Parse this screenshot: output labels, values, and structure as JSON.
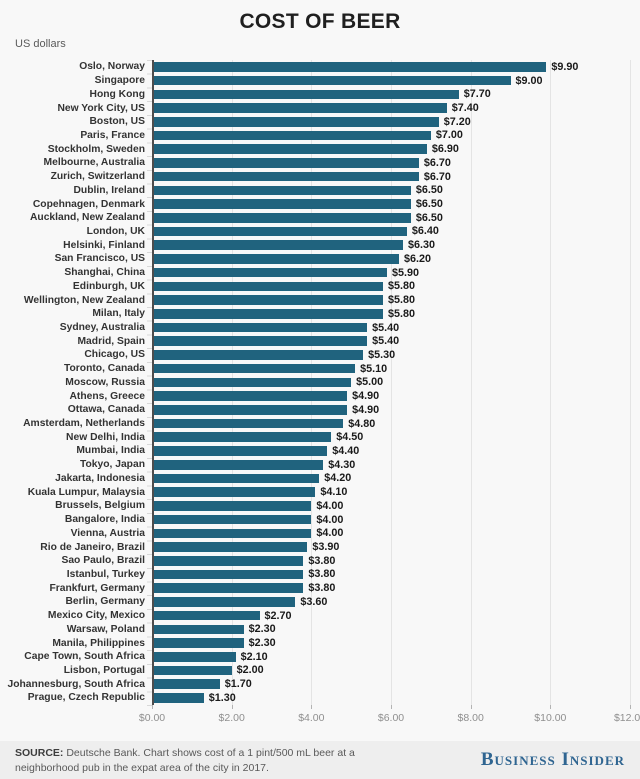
{
  "header": {
    "title": "COST OF BEER",
    "units": "US dollars"
  },
  "chart_data": {
    "type": "bar",
    "orientation": "horizontal",
    "title": "COST OF BEER",
    "units_label": "US dollars",
    "value_prefix": "$",
    "xlim": [
      0,
      12
    ],
    "x_ticks": [
      "$0.00",
      "$2.00",
      "$4.00",
      "$6.00",
      "$8.00",
      "$10.00",
      "$12.00"
    ],
    "grid": true,
    "bar_color": "#20637E",
    "categories": [
      "Oslo, Norway",
      "Singapore",
      "Hong Kong",
      "New York City, US",
      "Boston, US",
      "Paris, France",
      "Stockholm, Sweden",
      "Melbourne, Australia",
      "Zurich, Switzerland",
      "Dublin, Ireland",
      "Copehnagen, Denmark",
      "Auckland, New Zealand",
      "London, UK",
      "Helsinki, Finland",
      "San Francisco, US",
      "Shanghai, China",
      "Edinburgh, UK",
      "Wellington, New Zealand",
      "Milan, Italy",
      "Sydney, Australia",
      "Madrid, Spain",
      "Chicago, US",
      "Toronto, Canada",
      "Moscow, Russia",
      "Athens, Greece",
      "Ottawa, Canada",
      "Amsterdam, Netherlands",
      "New Delhi, India",
      "Mumbai, India",
      "Tokyo, Japan",
      "Jakarta, Indonesia",
      "Kuala Lumpur, Malaysia",
      "Brussels, Belgium",
      "Bangalore, India",
      "Vienna, Austria",
      "Rio de Janeiro, Brazil",
      "Sao Paulo, Brazil",
      "Istanbul, Turkey",
      "Frankfurt, Germany",
      "Berlin, Germany",
      "Mexico City, Mexico",
      "Warsaw, Poland",
      "Manila, Philippines",
      "Cape Town, South Africa",
      "Lisbon, Portugal",
      "Johannesburg, South Africa",
      "Prague, Czech Republic"
    ],
    "values": [
      9.9,
      9.0,
      7.7,
      7.4,
      7.2,
      7.0,
      6.9,
      6.7,
      6.7,
      6.5,
      6.5,
      6.5,
      6.4,
      6.3,
      6.2,
      5.9,
      5.8,
      5.8,
      5.8,
      5.4,
      5.4,
      5.3,
      5.1,
      5.0,
      4.9,
      4.9,
      4.8,
      4.5,
      4.4,
      4.3,
      4.2,
      4.1,
      4.0,
      4.0,
      4.0,
      3.9,
      3.8,
      3.8,
      3.8,
      3.6,
      2.7,
      2.3,
      2.3,
      2.1,
      2.0,
      1.7,
      1.3
    ]
  },
  "footer": {
    "source_label": "SOURCE:",
    "source_line1": "Deutsche Bank. Chart shows cost of a 1 pint/500 mL beer at a",
    "source_line2": "neighborhood pub in the expat area of the city in 2017.",
    "brand": "Business Insider"
  }
}
